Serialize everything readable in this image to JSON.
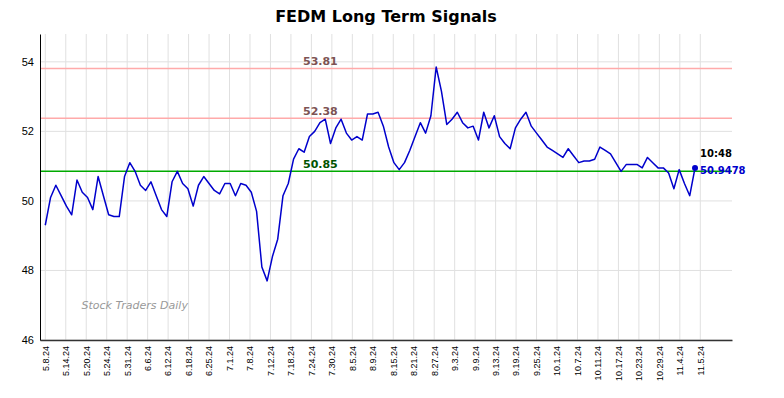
{
  "chart_data": {
    "type": "line",
    "title": "FEDM Long Term Signals",
    "color": "#0000cc",
    "values": [
      49.3,
      50.1,
      50.45,
      50.15,
      49.85,
      49.6,
      50.6,
      50.25,
      50.1,
      49.75,
      50.7,
      50.15,
      49.6,
      49.55,
      49.55,
      50.7,
      51.1,
      50.85,
      50.45,
      50.3,
      50.55,
      50.15,
      49.75,
      49.55,
      50.55,
      50.85,
      50.5,
      50.35,
      49.85,
      50.45,
      50.7,
      50.5,
      50.3,
      50.2,
      50.5,
      50.5,
      50.15,
      50.5,
      50.45,
      50.25,
      49.7,
      48.1,
      47.7,
      48.4,
      48.9,
      50.15,
      50.5,
      51.2,
      51.5,
      51.4,
      51.85,
      52.0,
      52.25,
      52.35,
      51.65,
      52.1,
      52.35,
      51.95,
      51.75,
      51.85,
      51.75,
      52.5,
      52.5,
      52.55,
      52.15,
      51.55,
      51.1,
      50.9,
      51.1,
      51.45,
      51.85,
      52.25,
      51.95,
      52.45,
      53.85,
      53.15,
      52.2,
      52.35,
      52.55,
      52.25,
      52.1,
      52.15,
      51.75,
      52.55,
      52.1,
      52.45,
      51.85,
      51.65,
      51.5,
      52.1,
      52.35,
      52.55,
      52.15,
      51.95,
      51.75,
      51.55,
      51.45,
      51.35,
      51.25,
      51.5,
      51.3,
      51.1,
      51.15,
      51.15,
      51.2,
      51.55,
      51.45,
      51.35,
      51.1,
      50.85,
      51.05,
      51.05,
      51.05,
      50.95,
      51.25,
      51.1,
      50.95,
      50.95,
      50.8,
      50.35,
      50.9,
      50.5,
      50.15,
      50.95
    ],
    "xlim": [
      -1,
      130
    ],
    "xticks": [
      {
        "value": 0,
        "label": "5.8.24"
      },
      {
        "value": 3.875,
        "label": "5.14.24"
      },
      {
        "value": 7.75,
        "label": "5.20.24"
      },
      {
        "value": 11.625,
        "label": "5.24.24"
      },
      {
        "value": 15.5,
        "label": "5.31.24"
      },
      {
        "value": 19.375,
        "label": "6.6.24"
      },
      {
        "value": 23.25,
        "label": "6.12.24"
      },
      {
        "value": 27.125,
        "label": "6.18.24"
      },
      {
        "value": 31,
        "label": "6.25.24"
      },
      {
        "value": 34.875,
        "label": "7.1.24"
      },
      {
        "value": 38.75,
        "label": "7.8.24"
      },
      {
        "value": 42.625,
        "label": "7.12.24"
      },
      {
        "value": 46.5,
        "label": "7.18.24"
      },
      {
        "value": 50.375,
        "label": "7.24.24"
      },
      {
        "value": 54.25,
        "label": "7.30.24"
      },
      {
        "value": 58.125,
        "label": "8.5.24"
      },
      {
        "value": 62,
        "label": "8.9.24"
      },
      {
        "value": 65.875,
        "label": "8.15.24"
      },
      {
        "value": 69.75,
        "label": "8.21.24"
      },
      {
        "value": 73.625,
        "label": "8.27.24"
      },
      {
        "value": 77.5,
        "label": "9.3.24"
      },
      {
        "value": 81.375,
        "label": "9.9.24"
      },
      {
        "value": 85.25,
        "label": "9.13.24"
      },
      {
        "value": 89.125,
        "label": "9.19.24"
      },
      {
        "value": 93,
        "label": "9.25.24"
      },
      {
        "value": 96.875,
        "label": "10.1.24"
      },
      {
        "value": 100.75,
        "label": "10.7.24"
      },
      {
        "value": 104.625,
        "label": "10.11.24"
      },
      {
        "value": 108.5,
        "label": "10.17.24"
      },
      {
        "value": 112.375,
        "label": "10.23.24"
      },
      {
        "value": 116.25,
        "label": "10.29.24"
      },
      {
        "value": 120.125,
        "label": "11.4.24"
      },
      {
        "value": 124,
        "label": "11.5.24"
      }
    ],
    "ylim": [
      46.0,
      54.8
    ],
    "yticks": [
      46,
      48,
      50,
      52,
      54
    ],
    "grid": true,
    "hlines": [
      {
        "value": 50.85,
        "label": "50.85",
        "color": "#00aa00"
      },
      {
        "value": 52.38,
        "label": "52.38",
        "color": "#ffaaaa"
      },
      {
        "value": 53.81,
        "label": "53.81",
        "color": "#ffaaaa"
      }
    ],
    "last_point_labels": [
      "10:48",
      "50.9478"
    ],
    "watermark": "Stock Traders Daily"
  }
}
